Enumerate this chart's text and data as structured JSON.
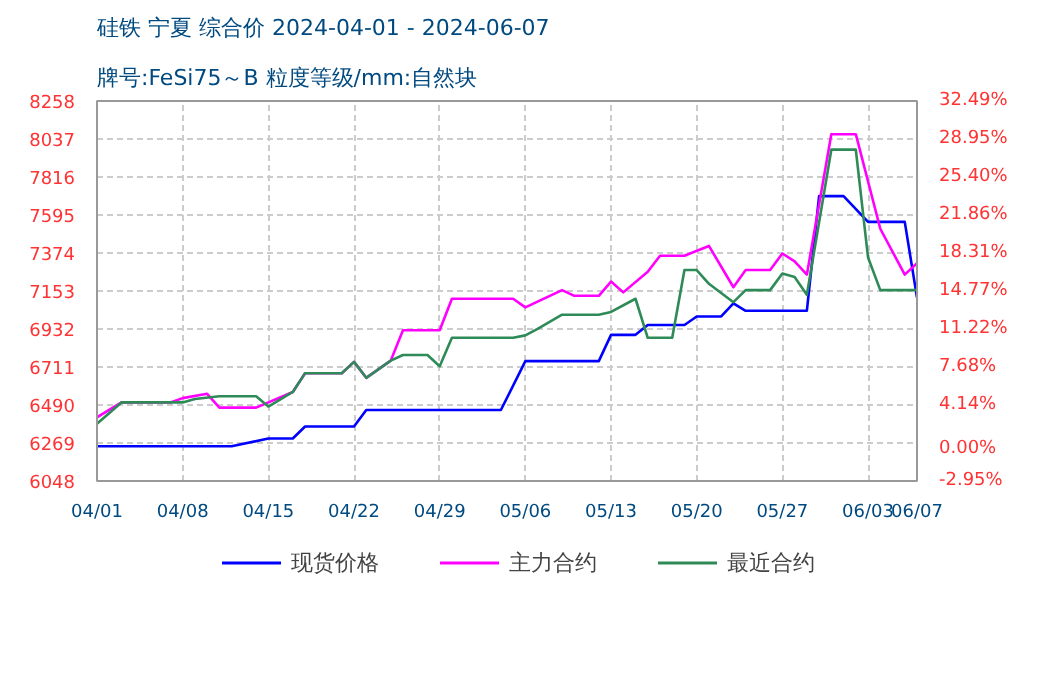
{
  "chart_data": {
    "type": "line",
    "title": "硅铁 宁夏 综合价 2024-04-01 - 2024-06-07",
    "subtitle": "牌号:FeSi75～B 粒度等级/mm:自然块",
    "xlim": [
      "2024-04-01",
      "2024-06-07"
    ],
    "xticks": [
      {
        "value": "2024-04-01",
        "label": "04/01"
      },
      {
        "value": "2024-04-08",
        "label": "04/08"
      },
      {
        "value": "2024-04-15",
        "label": "04/15"
      },
      {
        "value": "2024-04-22",
        "label": "04/22"
      },
      {
        "value": "2024-04-29",
        "label": "04/29"
      },
      {
        "value": "2024-05-06",
        "label": "05/06"
      },
      {
        "value": "2024-05-13",
        "label": "05/13"
      },
      {
        "value": "2024-05-20",
        "label": "05/20"
      },
      {
        "value": "2024-05-27",
        "label": "05/27"
      },
      {
        "value": "2024-06-03",
        "label": "06/03"
      },
      {
        "value": "2024-06-07",
        "label": "06/07"
      }
    ],
    "ylim": [
      6048,
      8258
    ],
    "yticks": [
      6048,
      6269,
      6490,
      6711,
      6932,
      7153,
      7374,
      7595,
      7816,
      8037,
      8258
    ],
    "y2lim": [
      -2.95,
      32.49
    ],
    "y2ticks": [
      {
        "value": -2.95,
        "label": "-2.95%"
      },
      {
        "value": 0,
        "label": "0.00%"
      },
      {
        "value": 4.14,
        "label": "4.14%"
      },
      {
        "value": 7.68,
        "label": "7.68%"
      },
      {
        "value": 11.22,
        "label": "11.22%"
      },
      {
        "value": 14.77,
        "label": "14.77%"
      },
      {
        "value": 18.31,
        "label": "18.31%"
      },
      {
        "value": 21.86,
        "label": "21.86%"
      },
      {
        "value": 25.4,
        "label": "25.40%"
      },
      {
        "value": 28.95,
        "label": "28.95%"
      },
      {
        "value": 32.49,
        "label": "32.49%"
      }
    ],
    "grid": true,
    "legend": "bottom",
    "marker": "none",
    "line_style": "solid",
    "series": [
      {
        "name": "现货价格",
        "color": "#0000ff",
        "x": [
          "2024-04-01",
          "2024-04-12",
          "2024-04-15",
          "2024-04-17",
          "2024-04-18",
          "2024-04-22",
          "2024-04-23",
          "2024-05-04",
          "2024-05-06",
          "2024-05-12",
          "2024-05-13",
          "2024-05-15",
          "2024-05-16",
          "2024-05-19",
          "2024-05-20",
          "2024-05-22",
          "2024-05-23",
          "2024-05-24",
          "2024-05-29",
          "2024-05-30",
          "2024-06-01",
          "2024-06-03",
          "2024-06-06",
          "2024-06-07"
        ],
        "values": [
          6250,
          6250,
          6295,
          6295,
          6365,
          6365,
          6461,
          6461,
          6745,
          6745,
          6898,
          6898,
          6955,
          6955,
          7005,
          7005,
          7081,
          7038,
          7038,
          7705,
          7705,
          7555,
          7555,
          7115
        ]
      },
      {
        "name": "主力合约",
        "color": "#ff00ff",
        "x": [
          "2024-04-01",
          "2024-04-03",
          "2024-04-07",
          "2024-04-08",
          "2024-04-10",
          "2024-04-11",
          "2024-04-14",
          "2024-04-17",
          "2024-04-18",
          "2024-04-21",
          "2024-04-22",
          "2024-04-23",
          "2024-04-25",
          "2024-04-26",
          "2024-04-29",
          "2024-04-30",
          "2024-05-05",
          "2024-05-06",
          "2024-05-09",
          "2024-05-10",
          "2024-05-12",
          "2024-05-13",
          "2024-05-14",
          "2024-05-16",
          "2024-05-17",
          "2024-05-19",
          "2024-05-21",
          "2024-05-23",
          "2024-05-24",
          "2024-05-26",
          "2024-05-27",
          "2024-05-28",
          "2024-05-29",
          "2024-05-31",
          "2024-06-02",
          "2024-06-04",
          "2024-06-06",
          "2024-06-07"
        ],
        "values": [
          6418,
          6505,
          6505,
          6530,
          6555,
          6475,
          6475,
          6566,
          6675,
          6675,
          6741,
          6648,
          6748,
          6925,
          6925,
          7108,
          7108,
          7058,
          7158,
          7125,
          7125,
          7208,
          7145,
          7265,
          7358,
          7358,
          7415,
          7175,
          7275,
          7275,
          7371,
          7325,
          7248,
          8065,
          8065,
          7515,
          7248,
          7315
        ]
      },
      {
        "name": "最近合约",
        "color": "#2e8b57",
        "x": [
          "2024-04-01",
          "2024-04-03",
          "2024-04-08",
          "2024-04-09",
          "2024-04-11",
          "2024-04-14",
          "2024-04-15",
          "2024-04-17",
          "2024-04-18",
          "2024-04-21",
          "2024-04-22",
          "2024-04-23",
          "2024-04-25",
          "2024-04-26",
          "2024-04-28",
          "2024-04-29",
          "2024-04-30",
          "2024-05-05",
          "2024-05-06",
          "2024-05-07",
          "2024-05-09",
          "2024-05-12",
          "2024-05-13",
          "2024-05-15",
          "2024-05-16",
          "2024-05-18",
          "2024-05-19",
          "2024-05-20",
          "2024-05-21",
          "2024-05-23",
          "2024-05-24",
          "2024-05-26",
          "2024-05-27",
          "2024-05-28",
          "2024-05-29",
          "2024-05-31",
          "2024-06-02",
          "2024-06-03",
          "2024-06-04",
          "2024-06-07"
        ],
        "values": [
          6381,
          6505,
          6505,
          6525,
          6541,
          6541,
          6481,
          6566,
          6675,
          6675,
          6741,
          6648,
          6748,
          6781,
          6781,
          6715,
          6881,
          6881,
          6895,
          6933,
          7015,
          7015,
          7031,
          7108,
          6881,
          6881,
          7275,
          7275,
          7195,
          7088,
          7158,
          7158,
          7255,
          7235,
          7131,
          7975,
          7975,
          7348,
          7158,
          7158
        ]
      }
    ]
  }
}
